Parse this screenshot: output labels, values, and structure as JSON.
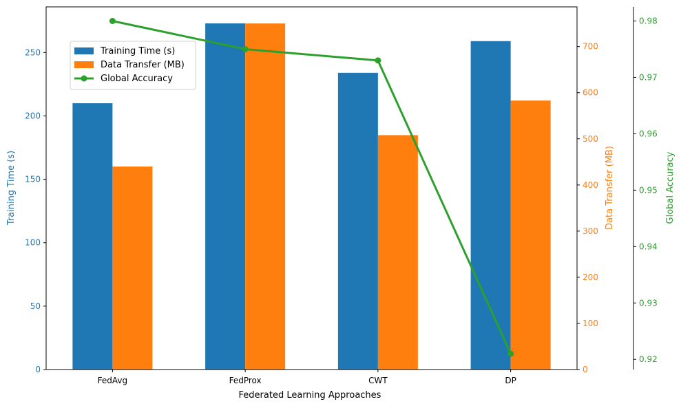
{
  "chart_data": {
    "type": "bar",
    "title": "",
    "xlabel": "Federated Learning Approaches",
    "categories": [
      "FedAvg",
      "FedProx",
      "CWT",
      "DP"
    ],
    "axes": {
      "y_left": {
        "label": "Training Time (s)",
        "range": [
          0,
          286
        ],
        "ticks": [
          0,
          50,
          100,
          150,
          200,
          250
        ],
        "color": "#1f77b4"
      },
      "y_right": {
        "label": "Data Transfer (MB)",
        "range": [
          0,
          786
        ],
        "ticks": [
          0,
          100,
          200,
          300,
          400,
          500,
          600,
          700
        ],
        "color": "#ff7f0e"
      },
      "y_right_outer": {
        "label": "Global Accuracy",
        "range": [
          0.9182,
          0.9825
        ],
        "ticks": [
          0.92,
          0.93,
          0.94,
          0.95,
          0.96,
          0.97,
          0.98
        ],
        "color": "#2ca02c"
      }
    },
    "series": [
      {
        "name": "Training Time (s)",
        "type": "bar",
        "axis": "y_left",
        "color": "#1f77b4",
        "values": [
          210,
          273,
          234,
          259
        ]
      },
      {
        "name": "Data Transfer (MB)",
        "type": "bar",
        "axis": "y_right",
        "color": "#ff7f0e",
        "values": [
          440,
          750,
          508,
          583
        ]
      },
      {
        "name": "Global Accuracy",
        "type": "line",
        "axis": "y_right_outer",
        "color": "#2ca02c",
        "values": [
          0.98,
          0.975,
          0.973,
          0.921
        ]
      }
    ],
    "tick_labels": {
      "y_left": [
        "0",
        "50",
        "100",
        "150",
        "200",
        "250"
      ],
      "y_right": [
        "0",
        "100",
        "200",
        "300",
        "400",
        "500",
        "600",
        "700"
      ],
      "y_right_outer": [
        "0.92",
        "0.93",
        "0.94",
        "0.95",
        "0.96",
        "0.97",
        "0.98"
      ]
    },
    "legend": {
      "position": "upper-left",
      "entries": [
        "Training Time (s)",
        "Data Transfer (MB)",
        "Global Accuracy"
      ]
    },
    "grid": false
  }
}
